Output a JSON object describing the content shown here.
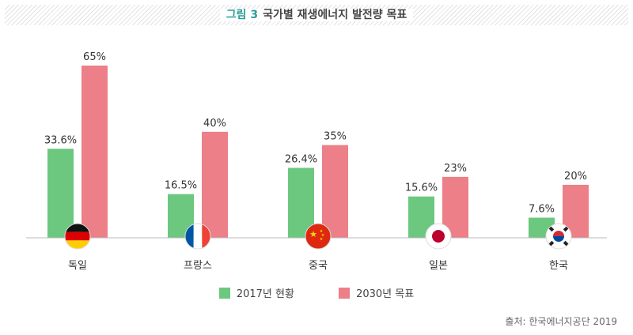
{
  "header": {
    "figure_label": "그림 3",
    "title": "국가별 재생에너지 발전량 목표"
  },
  "chart_data": {
    "type": "bar",
    "title": "국가별 재생에너지 발전량 목표",
    "categories": [
      "독일",
      "프랑스",
      "중국",
      "일본",
      "한국"
    ],
    "series": [
      {
        "name": "2017년 현황",
        "values": [
          33.6,
          16.5,
          26.4,
          15.6,
          7.6
        ],
        "labels": [
          "33.6%",
          "16.5%",
          "26.4%",
          "15.6%",
          "7.6%"
        ],
        "color": "#6cc77f"
      },
      {
        "name": "2030년 목표",
        "values": [
          65,
          40,
          35,
          23,
          20
        ],
        "labels": [
          "65%",
          "40%",
          "35%",
          "23%",
          "20%"
        ],
        "color": "#ec7f87"
      }
    ],
    "ylim": [
      0,
      70
    ],
    "flag_icons": [
      "germany-flag-icon",
      "france-flag-icon",
      "china-flag-icon",
      "japan-flag-icon",
      "korea-flag-icon"
    ],
    "grid": false,
    "legend_position": "bottom-center"
  },
  "source": "출처: 한국에너지공단 2019"
}
